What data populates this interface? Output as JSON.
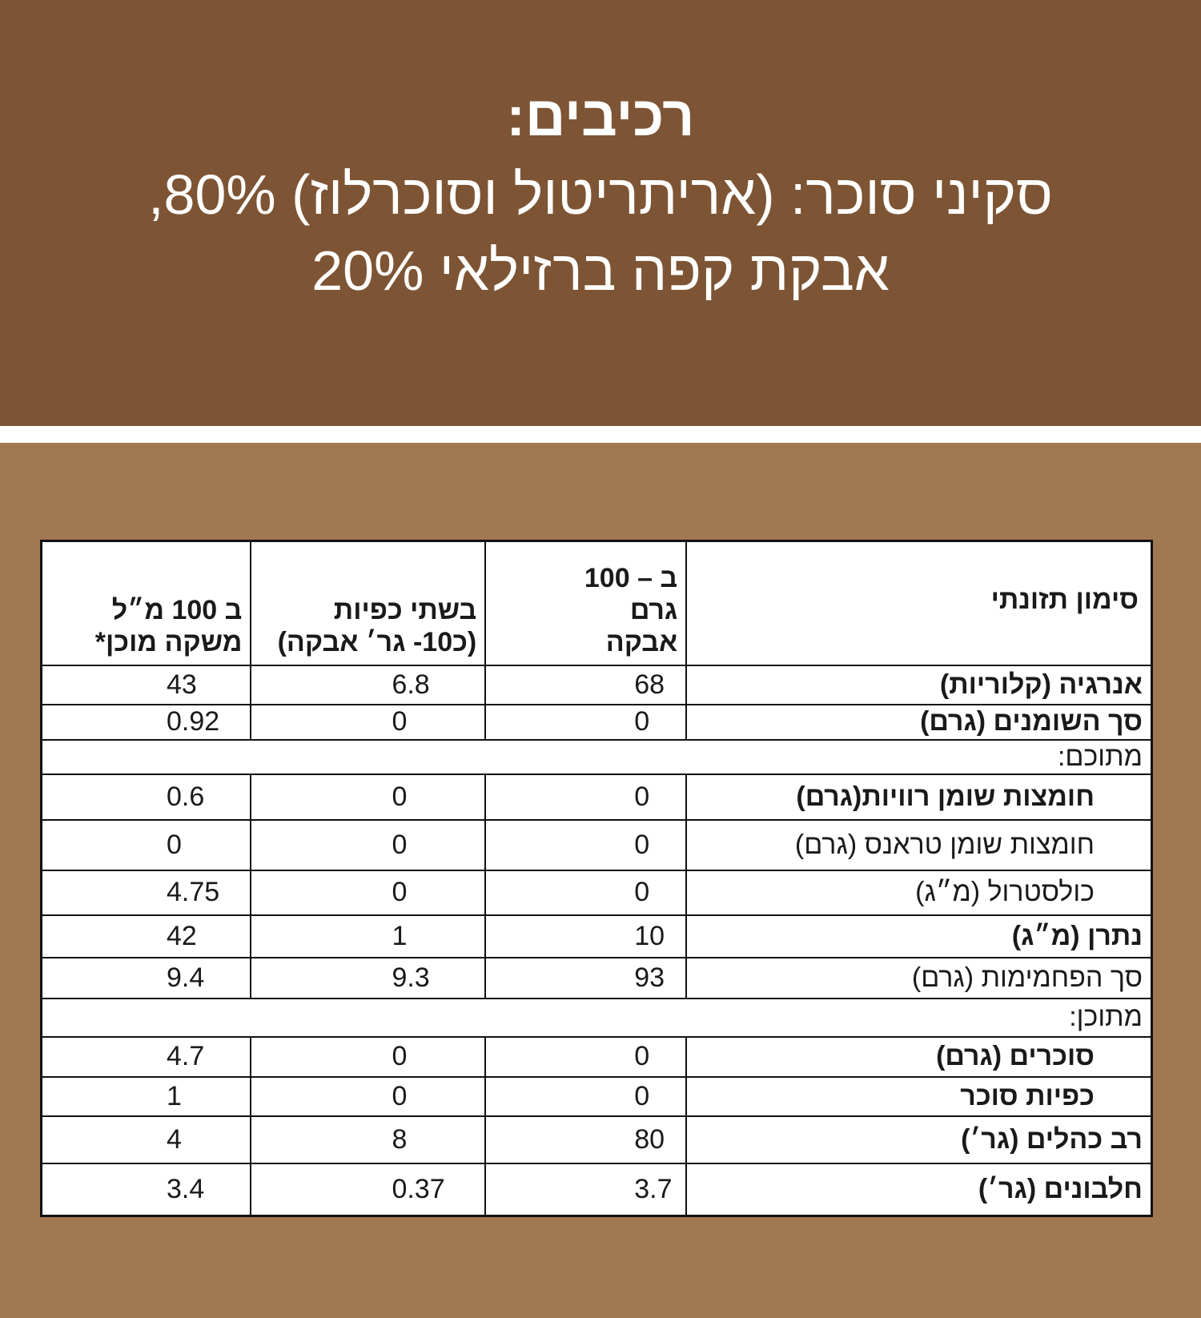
{
  "header": {
    "lines": [
      "רכיבים:",
      "סקיני סוכר: (אריתריטול וסוכרלוז) 80%,",
      "אבקת קפה ברזילאי 20%"
    ]
  },
  "table": {
    "columns": [
      "סימון תזונתי",
      "ב – 100 גרם אבקה",
      "בשתי כפיות (כ10- גר׳ אבקה)",
      "ב 100 מ״ל משקה מוכן*"
    ],
    "rows": [
      {
        "label": "אנרגיה (קלוריות)",
        "bold": true,
        "values": [
          "68",
          "6.8",
          "43"
        ]
      },
      {
        "label": "סך השומנים (גרם)",
        "bold": true,
        "values": [
          "0",
          "0",
          "0.92"
        ]
      },
      {
        "label": "מתוכם:",
        "span": true
      },
      {
        "label": "חומצות שומן רוויות(גרם)",
        "bold": true,
        "values": [
          "0",
          "0",
          "0.6"
        ]
      },
      {
        "label": "חומצות שומן טראנס (גרם)",
        "bold": false,
        "values": [
          "0",
          "0",
          "0"
        ]
      },
      {
        "label": "כולסטרול (מ״ג)",
        "bold": false,
        "values": [
          "0",
          "0",
          "4.75"
        ]
      },
      {
        "label": "נתרן (מ״ג)",
        "bold": true,
        "values": [
          "10",
          "1",
          "42"
        ]
      },
      {
        "label": "סך הפחמימות (גרם)",
        "bold": false,
        "values": [
          "93",
          "9.3",
          "9.4"
        ]
      },
      {
        "label": "מתוכן:",
        "span": true
      },
      {
        "label": "סוכרים (גרם)",
        "bold": true,
        "values": [
          "0",
          "0",
          "4.7"
        ]
      },
      {
        "label": "כפיות סוכר",
        "bold": true,
        "values": [
          "0",
          "0",
          "1"
        ]
      },
      {
        "label": "רב כהלים (גר׳)",
        "bold": true,
        "values": [
          "80",
          "8",
          "4"
        ]
      },
      {
        "label": "חלבונים (גר׳)",
        "bold": true,
        "values": [
          "3.7",
          "0.37",
          "3.4"
        ]
      }
    ]
  },
  "colors": {
    "header_bg": "#7d5534",
    "body_bg": "#a07852"
  }
}
